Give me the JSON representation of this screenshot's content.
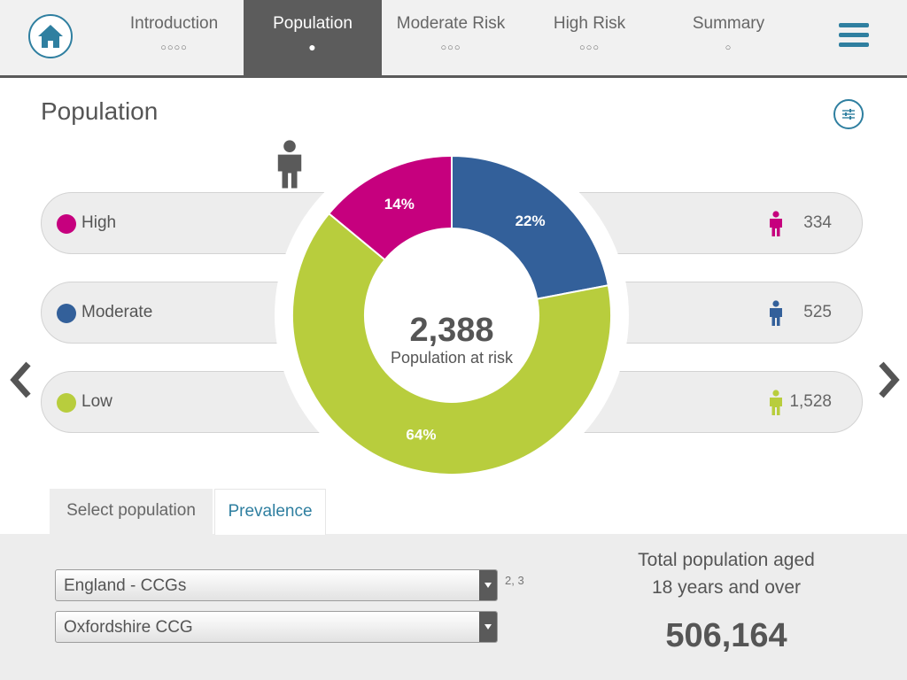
{
  "nav": {
    "tabs": [
      {
        "label": "Introduction",
        "dots": "○○○○"
      },
      {
        "label": "Population",
        "dots": "●"
      },
      {
        "label": "Moderate Risk",
        "dots": "○○○"
      },
      {
        "label": "High Risk",
        "dots": "○○○"
      },
      {
        "label": "Summary",
        "dots": "○"
      }
    ],
    "active_tab": "Population",
    "icons": {
      "home": "home-icon",
      "menu": "hamburger-menu-icon",
      "filter": "sliders-icon"
    }
  },
  "page": {
    "title": "Population"
  },
  "risk_rows": [
    {
      "label": "High",
      "count": "334",
      "color": "#c6007e"
    },
    {
      "label": "Moderate",
      "count": "525",
      "color": "#33609a"
    },
    {
      "label": "Low",
      "count": "1,528",
      "color": "#b8cd3d"
    }
  ],
  "chart_data": {
    "type": "pie",
    "variant": "donut",
    "categories": [
      "High",
      "Moderate",
      "Low"
    ],
    "values": [
      14,
      22,
      64
    ],
    "value_labels": [
      "14%",
      "22%",
      "64%"
    ],
    "colors": [
      "#c6007e",
      "#33609a",
      "#b8cd3d"
    ],
    "center_value": "2,388",
    "center_label": "Population at risk"
  },
  "subtabs": {
    "select": "Select population",
    "prevalence": "Prevalence"
  },
  "selects": {
    "region": "England - CCGs",
    "ccg": "Oxfordshire CCG",
    "footnote": "2, 3"
  },
  "totals": {
    "label_line1": "Total population aged",
    "label_line2": "18 years and over",
    "value": "506,164"
  }
}
